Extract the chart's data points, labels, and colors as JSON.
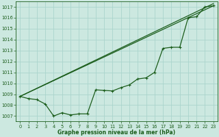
{
  "background_color": "#cce8e0",
  "grid_color": "#aad4cc",
  "line_color": "#1a5c1a",
  "xlabel": "Graphe pression niveau de la mer (hPa)",
  "xlim": [
    -0.5,
    23.5
  ],
  "ylim": [
    1006.5,
    1017.5
  ],
  "yticks": [
    1007,
    1008,
    1009,
    1010,
    1011,
    1012,
    1013,
    1014,
    1015,
    1016,
    1017
  ],
  "xticks": [
    0,
    1,
    2,
    3,
    4,
    5,
    6,
    7,
    8,
    9,
    10,
    11,
    12,
    13,
    14,
    15,
    16,
    17,
    18,
    19,
    20,
    21,
    22,
    23
  ],
  "line1_x": [
    0,
    1,
    2,
    3,
    4,
    5,
    6,
    7,
    8,
    9,
    10,
    11,
    12,
    13,
    14,
    15,
    16,
    17,
    18,
    19,
    20,
    21,
    22,
    23
  ],
  "line1_y": [
    1008.8,
    1008.6,
    1008.5,
    1008.1,
    1007.0,
    1007.3,
    1007.1,
    1007.2,
    1007.2,
    1009.4,
    1009.35,
    1009.3,
    1009.6,
    1009.85,
    1010.4,
    1010.5,
    1011.0,
    1013.2,
    1013.3,
    1013.3,
    1016.0,
    1016.1,
    1017.0,
    1017.1
  ],
  "line2_x": [
    0,
    23
  ],
  "line2_y": [
    1008.8,
    1017.1
  ],
  "line3_x": [
    0,
    23
  ],
  "line3_y": [
    1008.8,
    1017.3
  ],
  "title_fontsize": 5.5,
  "tick_fontsize": 4.8,
  "linewidth": 0.9
}
